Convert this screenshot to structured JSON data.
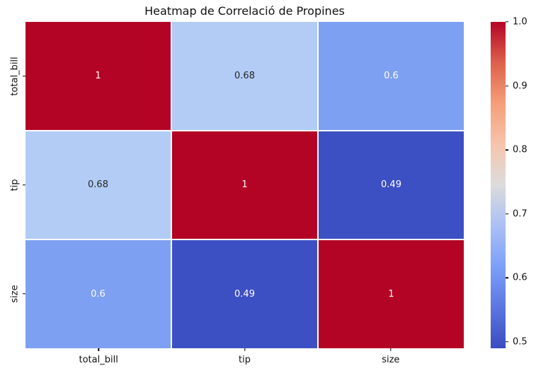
{
  "figure": {
    "background": "#ffffff",
    "title": "Heatmap de Correlació de Propines"
  },
  "chart_data": {
    "type": "heatmap",
    "title": "Heatmap de Correlació de Propines",
    "categories": [
      "total_bill",
      "tip",
      "size"
    ],
    "matrix": [
      [
        1,
        0.68,
        0.6
      ],
      [
        0.68,
        1,
        0.49
      ],
      [
        0.6,
        0.49,
        1
      ]
    ],
    "annotations": [
      [
        "1",
        "0.68",
        "0.6"
      ],
      [
        "0.68",
        "1",
        "0.49"
      ],
      [
        "0.6",
        "0.49",
        "1"
      ]
    ],
    "colormap": "coolwarm",
    "vmin": 0.49,
    "vmax": 1.0,
    "grid_line_color": "#ffffff",
    "cell_colors": {
      "1": "#b40426",
      "0.68": "#b2ccf5",
      "0.6": "#7da0f2",
      "0.49": "#3d50c3"
    },
    "annot_colors": {
      "1": "#ffffff",
      "0.68": "#262626",
      "0.6": "#ffffff",
      "0.49": "#ffffff"
    },
    "colorbar": {
      "position": "right",
      "tick_labels": [
        "1.0",
        "0.9",
        "0.8",
        "0.7",
        "0.6",
        "0.5"
      ],
      "tick_values": [
        1.0,
        0.9,
        0.8,
        0.7,
        0.6,
        0.5
      ],
      "gradient_top_to_bottom": [
        "#b40426",
        "#dd604c",
        "#f69e79",
        "#f6c4ad",
        "#dcdcdc",
        "#abbff5",
        "#7c9ff9",
        "#5c76e2",
        "#3b4cc0"
      ]
    }
  }
}
